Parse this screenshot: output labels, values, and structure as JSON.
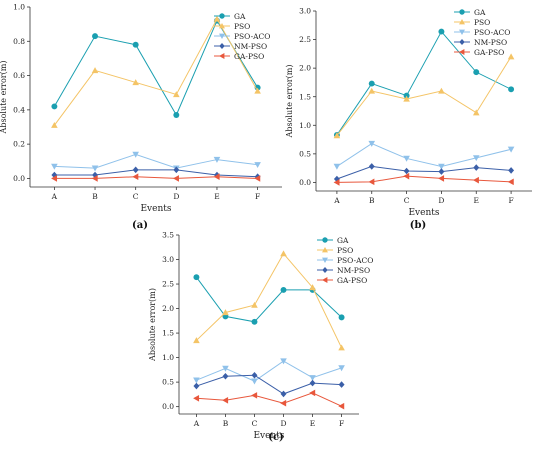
{
  "colors": {
    "GA": "#1a9fb0",
    "PSO": "#f4c466",
    "PSO-ACO": "#8fc1ea",
    "NM-PSO": "#3b5fa8",
    "GA-PSO": "#e8573c"
  },
  "markers": {
    "GA": "circle",
    "PSO": "triangle-up",
    "PSO-ACO": "triangle-down",
    "NM-PSO": "diamond",
    "GA-PSO": "triangle-left"
  },
  "chart_data": [
    {
      "panel_label": "(a)",
      "type": "line",
      "xlabel": "Events",
      "ylabel": "Absolute error(m)",
      "categories": [
        "A",
        "B",
        "C",
        "D",
        "E",
        "F"
      ],
      "ylim": [
        -0.05,
        1.0
      ],
      "yticks": [
        0.0,
        0.2,
        0.4,
        0.6,
        0.8,
        1.0
      ],
      "yticklabels": [
        "0.0",
        "0.2",
        "0.4",
        "0.6",
        "0.8",
        "1.0"
      ],
      "legend": "top-right",
      "series": [
        {
          "name": "GA",
          "values": [
            0.42,
            0.83,
            0.78,
            0.37,
            0.92,
            0.53
          ]
        },
        {
          "name": "PSO",
          "values": [
            0.31,
            0.63,
            0.56,
            0.49,
            0.93,
            0.51
          ]
        },
        {
          "name": "PSO-ACO",
          "values": [
            0.07,
            0.06,
            0.14,
            0.06,
            0.11,
            0.08
          ]
        },
        {
          "name": "NM-PSO",
          "values": [
            0.02,
            0.02,
            0.05,
            0.05,
            0.02,
            0.01
          ]
        },
        {
          "name": "GA-PSO",
          "values": [
            0.0,
            0.0,
            0.01,
            0.0,
            0.01,
            0.0
          ]
        }
      ]
    },
    {
      "panel_label": "(b)",
      "type": "line",
      "xlabel": "Events",
      "ylabel": "Absolute error(m)",
      "categories": [
        "A",
        "B",
        "C",
        "D",
        "E",
        "F"
      ],
      "ylim": [
        -0.15,
        3.0
      ],
      "yticks": [
        0.0,
        0.5,
        1.0,
        1.5,
        2.0,
        2.5,
        3.0
      ],
      "yticklabels": [
        "0.0",
        "0.5",
        "1.0",
        "1.5",
        "2.0",
        "2.5",
        "3.0"
      ],
      "legend": "top-right",
      "series": [
        {
          "name": "GA",
          "values": [
            0.83,
            1.73,
            1.52,
            2.64,
            1.93,
            1.63
          ]
        },
        {
          "name": "PSO",
          "values": [
            0.82,
            1.6,
            1.46,
            1.6,
            1.22,
            2.2
          ]
        },
        {
          "name": "PSO-ACO",
          "values": [
            0.28,
            0.68,
            0.42,
            0.28,
            0.43,
            0.58
          ]
        },
        {
          "name": "NM-PSO",
          "values": [
            0.06,
            0.28,
            0.2,
            0.19,
            0.26,
            0.21
          ]
        },
        {
          "name": "GA-PSO",
          "values": [
            0.0,
            0.01,
            0.11,
            0.07,
            0.04,
            0.01
          ]
        }
      ]
    },
    {
      "panel_label": "(c)",
      "type": "line",
      "xlabel": "Events",
      "ylabel": "Absolute error(m)",
      "categories": [
        "A",
        "B",
        "C",
        "D",
        "E",
        "F"
      ],
      "ylim": [
        -0.15,
        3.5
      ],
      "yticks": [
        0.0,
        0.5,
        1.0,
        1.5,
        2.0,
        2.5,
        3.0,
        3.5
      ],
      "yticklabels": [
        "0.0",
        "0.5",
        "1.0",
        "1.5",
        "2.0",
        "2.5",
        "3.0",
        "3.5"
      ],
      "legend": "top-right",
      "series": [
        {
          "name": "GA",
          "values": [
            2.64,
            1.84,
            1.73,
            2.38,
            2.38,
            1.82
          ]
        },
        {
          "name": "PSO",
          "values": [
            1.35,
            1.92,
            2.07,
            3.12,
            2.43,
            1.2
          ]
        },
        {
          "name": "PSO-ACO",
          "values": [
            0.54,
            0.78,
            0.52,
            0.93,
            0.59,
            0.79
          ]
        },
        {
          "name": "NM-PSO",
          "values": [
            0.42,
            0.62,
            0.64,
            0.26,
            0.48,
            0.45
          ]
        },
        {
          "name": "GA-PSO",
          "values": [
            0.17,
            0.13,
            0.23,
            0.07,
            0.28,
            0.01
          ]
        }
      ]
    }
  ]
}
